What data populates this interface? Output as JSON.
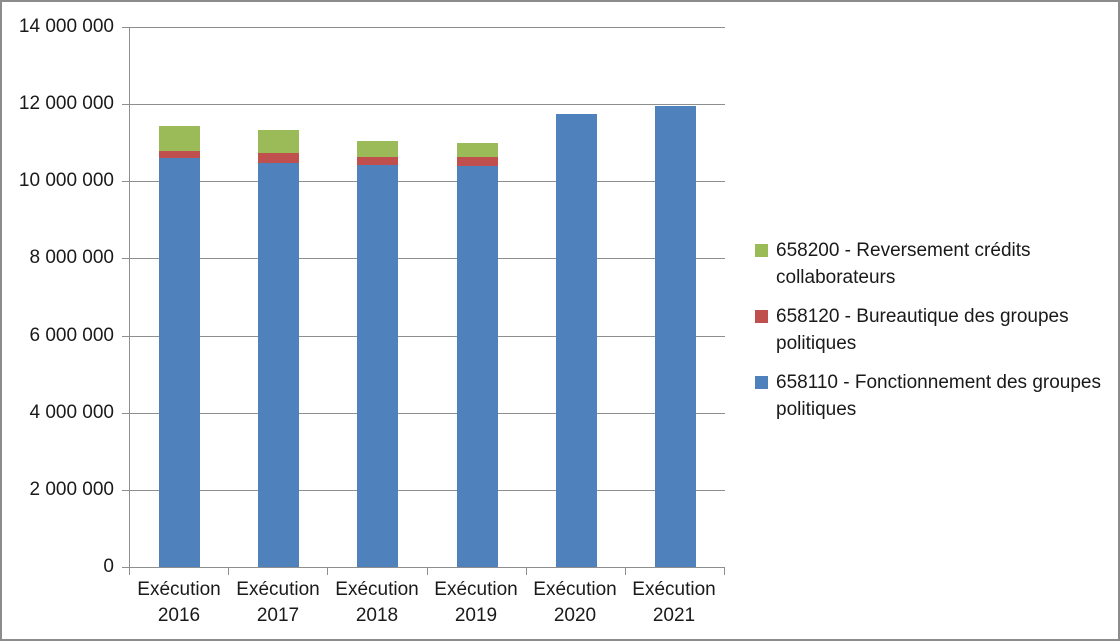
{
  "chart_data": {
    "type": "bar",
    "stacked": true,
    "title": "",
    "xlabel": "",
    "ylabel": "",
    "categories": [
      "Exécution 2016",
      "Exécution 2017",
      "Exécution 2018",
      "Exécution 2019",
      "Exécution 2020",
      "Exécution 2021"
    ],
    "series": [
      {
        "name": "658110 - Fonctionnement des groupes politiques",
        "color": "#4F81BD",
        "values": [
          10600000,
          10480000,
          10430000,
          10400000,
          11750000,
          11950000
        ]
      },
      {
        "name": "658120 - Bureautique des groupes politiques",
        "color": "#C0504D",
        "values": [
          180000,
          250000,
          200000,
          240000,
          0,
          0
        ]
      },
      {
        "name": "658200 - Reversement crédits collaborateurs",
        "color": "#9BBB59",
        "values": [
          650000,
          600000,
          420000,
          360000,
          0,
          0
        ]
      }
    ],
    "ylim": [
      0,
      14000000
    ],
    "y_ticks": [
      {
        "value": 0,
        "label": "0"
      },
      {
        "value": 2000000,
        "label": "2 000 000"
      },
      {
        "value": 4000000,
        "label": "4 000 000"
      },
      {
        "value": 6000000,
        "label": "6 000 000"
      },
      {
        "value": 8000000,
        "label": "8 000 000"
      },
      {
        "value": 10000000,
        "label": "10 000 000"
      },
      {
        "value": 12000000,
        "label": "12 000 000"
      },
      {
        "value": 14000000,
        "label": "14 000 000"
      }
    ],
    "grid": true,
    "legend_position": "right",
    "legend_order": "reversed",
    "style": {
      "grid_color": "#8e8e8e",
      "axis_color": "#8e8e8e",
      "text_color": "#1a1a1a",
      "frame_border_color": "#8c8c8c",
      "background": "#ffffff"
    }
  }
}
